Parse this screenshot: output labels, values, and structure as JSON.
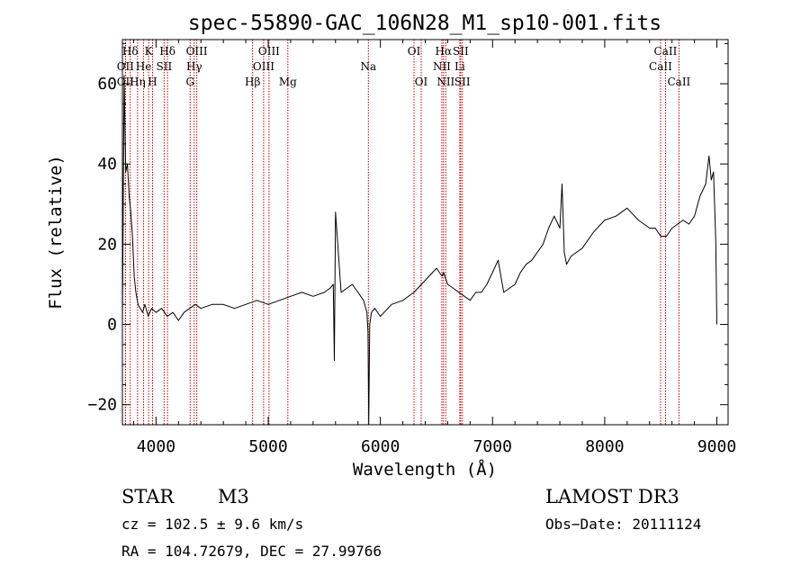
{
  "chart_data": {
    "type": "line",
    "title": "spec-55890-GAC_106N28_M1_sp10-001.fits",
    "xlabel": "Wavelength (Å)",
    "ylabel": "Flux (relative)",
    "xlim": [
      3700,
      9100
    ],
    "ylim": [
      -25,
      71
    ],
    "xticks": [
      4000,
      5000,
      6000,
      7000,
      8000,
      9000
    ],
    "xtick_labels": [
      "4000",
      "5000",
      "6000",
      "7000",
      "8000",
      "9000"
    ],
    "yticks": [
      -20,
      0,
      20,
      40,
      60
    ],
    "ytick_labels": [
      "−20",
      "0",
      "20",
      "40",
      "60"
    ],
    "series": [
      {
        "name": "spectrum",
        "x": [
          3700,
          3715,
          3730,
          3745,
          3760,
          3775,
          3790,
          3805,
          3820,
          3840,
          3860,
          3880,
          3900,
          3930,
          3960,
          4000,
          4050,
          4100,
          4150,
          4200,
          4250,
          4300,
          4350,
          4400,
          4500,
          4600,
          4700,
          4800,
          4900,
          5000,
          5100,
          5200,
          5300,
          5400,
          5500,
          5550,
          5580,
          5590,
          5600,
          5650,
          5700,
          5750,
          5800,
          5850,
          5880,
          5890,
          5896,
          5905,
          5920,
          5950,
          6000,
          6100,
          6200,
          6300,
          6400,
          6500,
          6550,
          6563,
          6600,
          6650,
          6700,
          6800,
          6850,
          6900,
          6950,
          7000,
          7050,
          7100,
          7150,
          7200,
          7250,
          7300,
          7350,
          7400,
          7450,
          7500,
          7550,
          7600,
          7620,
          7640,
          7660,
          7700,
          7800,
          7900,
          8000,
          8100,
          8200,
          8300,
          8400,
          8450,
          8500,
          8550,
          8600,
          8650,
          8700,
          8750,
          8800,
          8850,
          8900,
          8930,
          8950,
          8970,
          8990,
          9000
        ],
        "y": [
          0,
          62,
          38,
          40,
          32,
          28,
          22,
          12,
          8,
          5,
          4,
          3,
          5,
          2,
          4,
          3,
          4,
          2,
          3,
          1,
          3,
          4,
          5,
          4,
          5,
          5,
          4,
          5,
          6,
          5,
          6,
          7,
          8,
          7,
          8,
          9,
          10,
          -9,
          28,
          8,
          9,
          10,
          8,
          6,
          3,
          -2,
          -25,
          0,
          3,
          4,
          2,
          5,
          6,
          8,
          11,
          14,
          12,
          13,
          10,
          9,
          8,
          6,
          8,
          8,
          10,
          13,
          16,
          8,
          9,
          10,
          13,
          15,
          16,
          18,
          20,
          24,
          27,
          24,
          35,
          18,
          15,
          17,
          19,
          23,
          26,
          27,
          29,
          26,
          24,
          24,
          22,
          22,
          24,
          25,
          26,
          25,
          27,
          32,
          35,
          42,
          36,
          38,
          21,
          0
        ]
      }
    ],
    "emission_lines": [
      {
        "label": "Hδ",
        "x": 3770,
        "row": 0
      },
      {
        "label": "K",
        "x": 3934,
        "row": 0
      },
      {
        "label": "Hδ",
        "x": 4102,
        "row": 0
      },
      {
        "label": "OIII",
        "x": 4363,
        "row": 0
      },
      {
        "label": "OIII",
        "x": 5007,
        "row": 0
      },
      {
        "label": "OI",
        "x": 6300,
        "row": 0
      },
      {
        "label": "Hα",
        "x": 6563,
        "row": 0
      },
      {
        "label": "SII",
        "x": 6716,
        "row": 0
      },
      {
        "label": "CaII",
        "x": 8542,
        "row": 0
      },
      {
        "label": "OII",
        "x": 3727,
        "row": 1
      },
      {
        "label": "He",
        "x": 3889,
        "row": 1
      },
      {
        "label": "SII",
        "x": 4072,
        "row": 1
      },
      {
        "label": "Hγ",
        "x": 4340,
        "row": 1
      },
      {
        "label": "OIII",
        "x": 4959,
        "row": 1
      },
      {
        "label": "Na",
        "x": 5893,
        "row": 1
      },
      {
        "label": "NII",
        "x": 6548,
        "row": 1
      },
      {
        "label": "Li",
        "x": 6708,
        "row": 1
      },
      {
        "label": "CaII",
        "x": 8498,
        "row": 1
      },
      {
        "label": "OII",
        "x": 3727,
        "row": 2
      },
      {
        "label": "Hη",
        "x": 3835,
        "row": 2
      },
      {
        "label": "H",
        "x": 3969,
        "row": 2
      },
      {
        "label": "G",
        "x": 4304,
        "row": 2
      },
      {
        "label": "Hβ",
        "x": 4861,
        "row": 2
      },
      {
        "label": "Mg",
        "x": 5175,
        "row": 2
      },
      {
        "label": "OI",
        "x": 6364,
        "row": 2
      },
      {
        "label": "NII",
        "x": 6583,
        "row": 2
      },
      {
        "label": "SII",
        "x": 6731,
        "row": 2
      },
      {
        "label": "CaII",
        "x": 8662,
        "row": 2
      }
    ]
  },
  "info": {
    "object_class": "STAR",
    "subclass": "M3",
    "survey": "LAMOST DR3",
    "cz": "cz = 102.5 ± 9.6 km/s",
    "obs_date": "Obs−Date: 20111124",
    "coords": "RA = 104.72679, DEC =  27.99766"
  },
  "colors": {
    "line_marker": "#c00000",
    "spectrum": "#000000",
    "axes": "#000000"
  }
}
